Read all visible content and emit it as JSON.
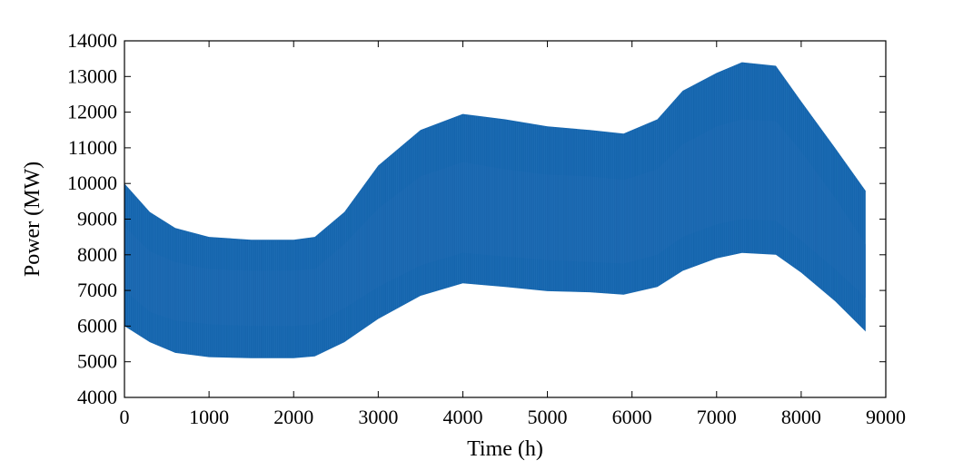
{
  "chart_data": {
    "type": "area",
    "xlabel": "Time (h)",
    "ylabel": "Power (MW)",
    "xlim": [
      0,
      9000
    ],
    "ylim": [
      4000,
      14000
    ],
    "xticks": [
      0,
      1000,
      2000,
      3000,
      4000,
      5000,
      6000,
      7000,
      8000,
      9000
    ],
    "yticks": [
      4000,
      5000,
      6000,
      7000,
      8000,
      9000,
      10000,
      11000,
      12000,
      13000,
      14000
    ],
    "grid": false,
    "series_color": "#1565ad",
    "dense_band_color": "#1966ae",
    "series": [
      {
        "name": "",
        "envelope": {
          "x": [
            0,
            300,
            600,
            1000,
            1500,
            2000,
            2250,
            2600,
            3000,
            3500,
            4000,
            4500,
            5000,
            5500,
            5900,
            6300,
            6600,
            7000,
            7300,
            7700,
            8000,
            8400,
            8760
          ],
          "upper": [
            10000,
            9200,
            8750,
            8500,
            8420,
            8420,
            8500,
            9200,
            10500,
            11500,
            11950,
            11800,
            11600,
            11500,
            11400,
            11800,
            12600,
            13100,
            13400,
            13300,
            12300,
            11000,
            9800
          ],
          "lower": [
            6000,
            5550,
            5250,
            5130,
            5100,
            5100,
            5150,
            5550,
            6200,
            6850,
            7200,
            7100,
            6980,
            6950,
            6880,
            7100,
            7550,
            7900,
            8050,
            8000,
            7500,
            6700,
            5850
          ],
          "dense_upper": [
            8800,
            8100,
            7800,
            7600,
            7550,
            7560,
            7600,
            8300,
            9300,
            10200,
            10600,
            10400,
            10250,
            10200,
            10100,
            10400,
            11100,
            11600,
            11800,
            11750,
            10900,
            9600,
            8300
          ],
          "dense_lower": [
            7000,
            6400,
            6150,
            6050,
            6000,
            6000,
            6050,
            6500,
            7100,
            7700,
            8050,
            7950,
            7850,
            7800,
            7750,
            8000,
            8500,
            8850,
            9000,
            8950,
            8400,
            7600,
            6800
          ]
        }
      }
    ]
  }
}
